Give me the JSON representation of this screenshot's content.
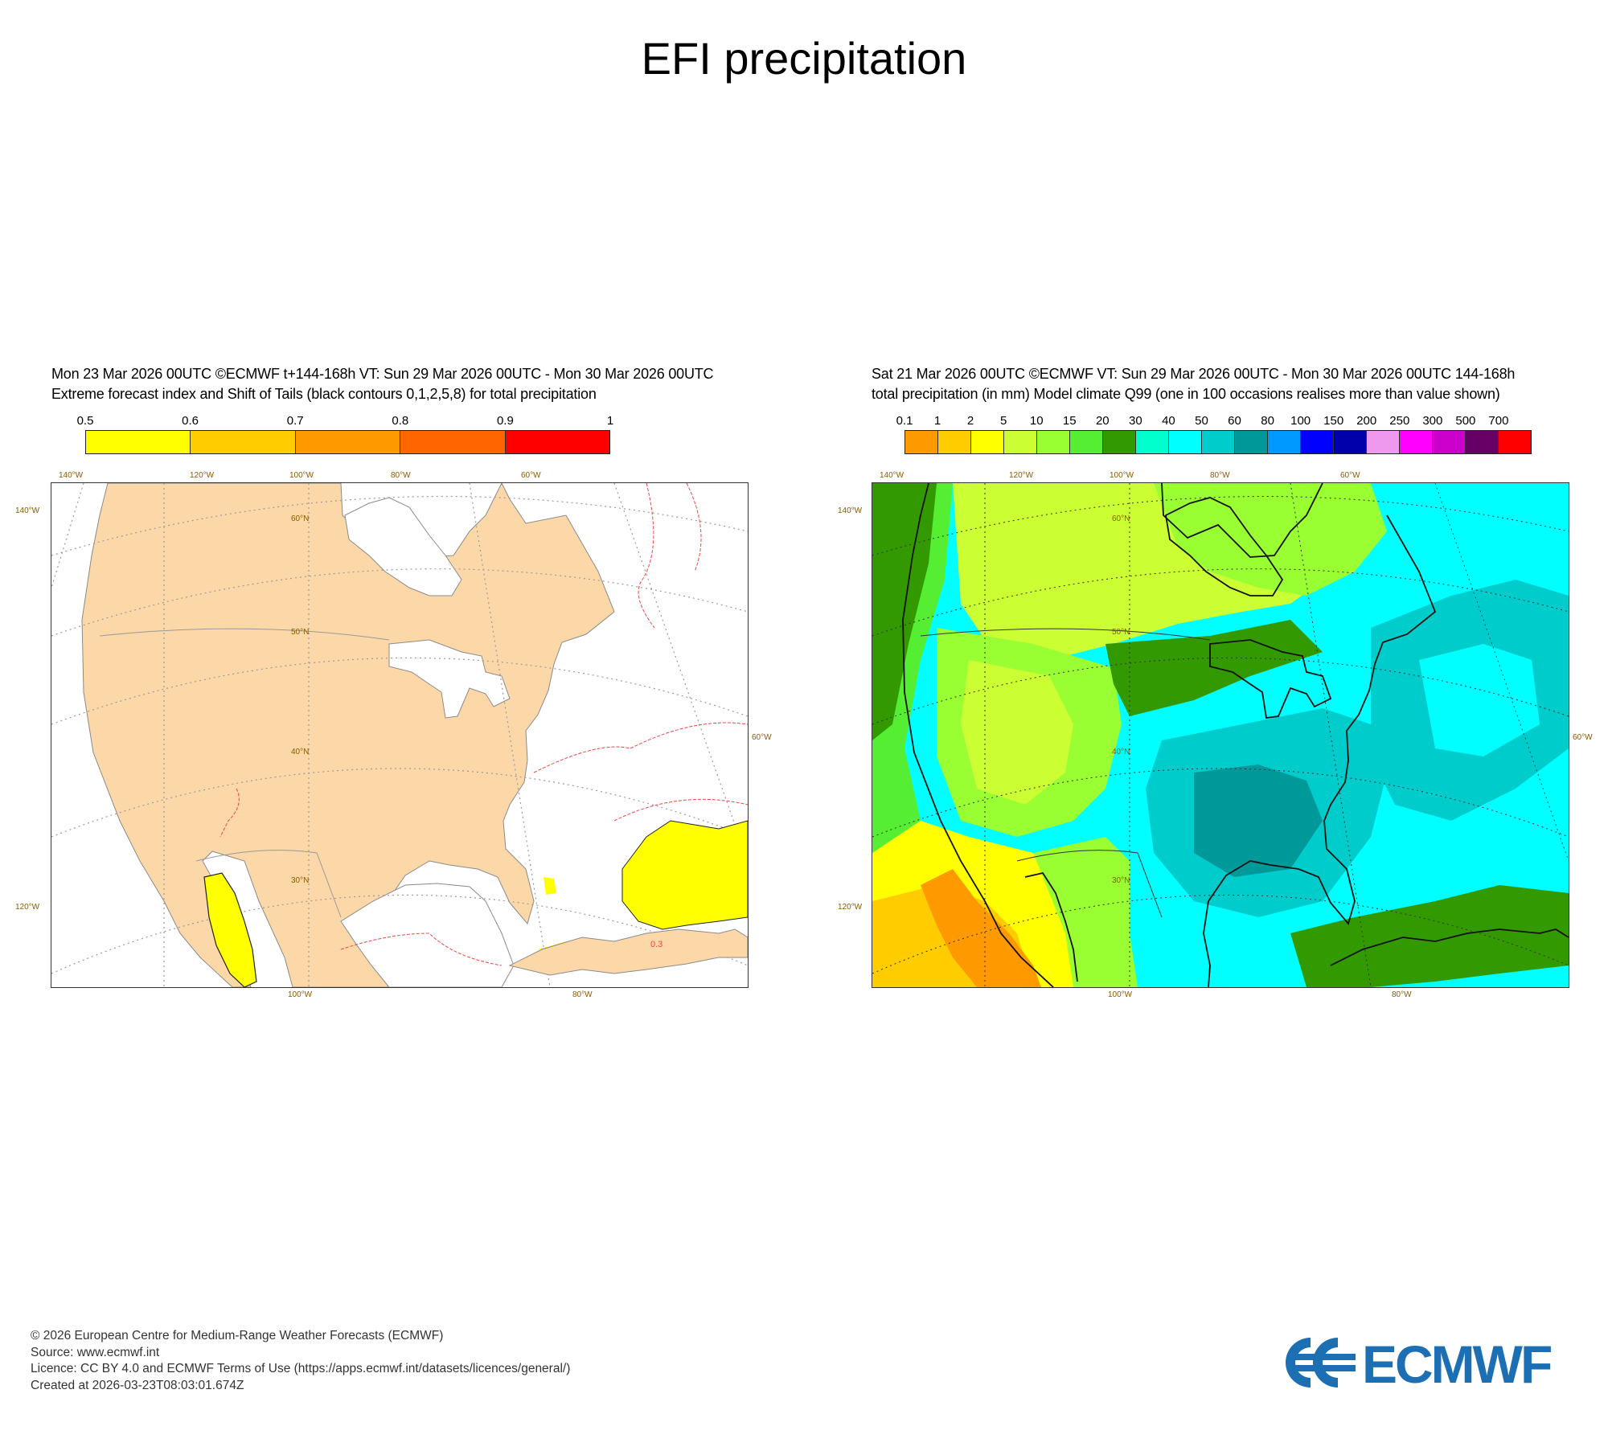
{
  "page": {
    "title": "EFI precipitation"
  },
  "left_panel": {
    "header_line1": "Mon 23 Mar 2026 00UTC ©ECMWF t+144-168h  VT: Sun 29 Mar 2026 00UTC - Mon 30 Mar 2026 00UTC",
    "header_line2": "Extreme forecast index and Shift of Tails (black contours 0,1,2,5,8) for total precipitation",
    "scale_labels": [
      "0.5",
      "0.6",
      "0.7",
      "0.8",
      "0.9",
      "1"
    ],
    "scale_colors": [
      "#ffff00",
      "#ffcc00",
      "#ff9900",
      "#ff6600",
      "#ff0000"
    ],
    "lon_top_labels": [
      "140°W",
      "120°W",
      "100°W",
      "80°W",
      "60°W"
    ],
    "lon_bottom_labels": [
      "100°W",
      "80°W"
    ],
    "lat_left_labels": [
      "140°W",
      "120°W"
    ],
    "lat_right_labels": [
      "60°W"
    ],
    "inner_lat_labels": [
      "60°N",
      "50°N",
      "40°N",
      "30°N"
    ],
    "contour_label": "0.3"
  },
  "right_panel": {
    "header_line1": "Sat 21 Mar 2026 00UTC ©ECMWF VT: Sun 29 Mar 2026 00UTC - Mon 30 Mar 2026 00UTC   144-168h",
    "header_line2": "total precipitation (in mm)  Model climate Q99 (one in 100 occasions realises more than value shown)",
    "scale_labels": [
      "0.1",
      "1",
      "2",
      "5",
      "10",
      "15",
      "20",
      "30",
      "40",
      "50",
      "60",
      "80",
      "100",
      "150",
      "200",
      "250",
      "300",
      "500",
      "700"
    ],
    "scale_colors": [
      "#ff9900",
      "#ffcc00",
      "#ffff00",
      "#ccff33",
      "#99ff33",
      "#55ee33",
      "#339900",
      "#00ffcc",
      "#00ffff",
      "#00cccc",
      "#009999",
      "#0099ff",
      "#0000ff",
      "#0000aa",
      "#ee99ee",
      "#ff00ff",
      "#cc00cc",
      "#660066",
      "#ff0000"
    ],
    "lon_top_labels": [
      "140°W",
      "120°W",
      "100°W",
      "80°W",
      "60°W"
    ],
    "lon_bottom_labels": [
      "100°W",
      "80°W"
    ],
    "lat_left_labels": [
      "140°W",
      "120°W"
    ],
    "lat_right_labels": [
      "60°W"
    ],
    "inner_lat_labels": [
      "60°N",
      "50°N",
      "40°N",
      "30°N"
    ]
  },
  "footer": {
    "copyright": "© 2026 European Centre for Medium-Range Weather Forecasts (ECMWF)",
    "source": "Source: www.ecmwf.int",
    "licence": "Licence: CC BY 4.0 and ECMWF Terms of Use (https://apps.ecmwf.int/datasets/licences/general/)",
    "created": "Created at 2026-03-23T08:03:01.674Z"
  },
  "logo": {
    "text": "ECMWF",
    "color": "#1d6fb3"
  }
}
